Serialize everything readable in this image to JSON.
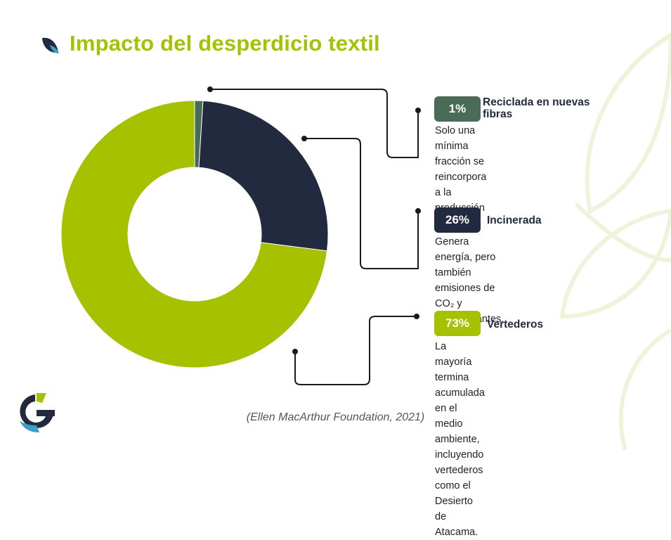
{
  "title": "Impacto del desperdicio textil",
  "source": "(Ellen MacArthur Foundation, 2021)",
  "colors": {
    "accent": "#a6c100",
    "recycled": "#4a6b57",
    "incinerated": "#222a3f",
    "landfill": "#a6c100"
  },
  "icons": {
    "title": "leaf-icon",
    "logo": "brand-logo-g-icon"
  },
  "chart_data": {
    "type": "pie",
    "donut": true,
    "categories": [
      "Reciclada en nuevas fibras",
      "Incinerada",
      "Vertederos"
    ],
    "values": [
      1,
      26,
      73
    ],
    "colors": [
      "#4a6b57",
      "#222a3f",
      "#a6c100"
    ],
    "legend_placement": "right"
  },
  "items": [
    {
      "percent": "1%",
      "label": "Reciclada en nuevas fibras",
      "desc_lines": [
        "Solo una mínima fracción se",
        "reincorpora a la producción textil."
      ]
    },
    {
      "percent": "26%",
      "label": "Incinerada",
      "desc_lines": [
        "Genera energía, pero también",
        "emisiones de CO₂ y contaminantes."
      ]
    },
    {
      "percent": "73%",
      "label": "Vertederos",
      "desc_lines": [
        "La mayoría termina acumulada en el",
        "medio ambiente, incluyendo vertederos",
        "como el Desierto de Atacama."
      ]
    }
  ]
}
